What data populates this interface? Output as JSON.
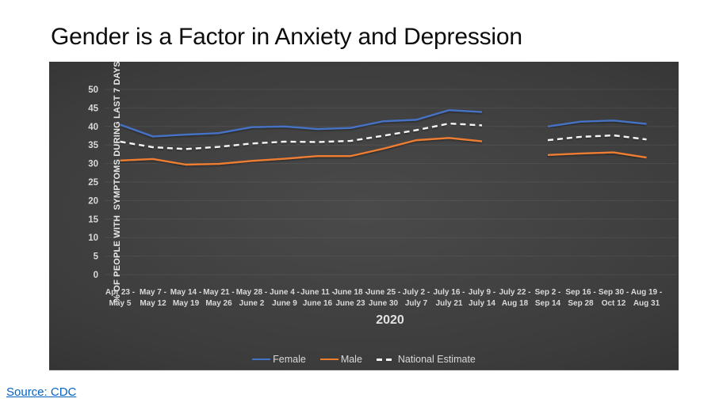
{
  "slide": {
    "title": "Gender is a Factor in Anxiety and Depression",
    "source_label": "Source: CDC"
  },
  "chart_data": {
    "type": "line",
    "title": "Gender is a Factor in Anxiety and Depression",
    "xlabel": "2020",
    "ylabel": "% OF PEOPLE WITH  SYMPTOMS DURING LAST 7 DAYS",
    "ylim": [
      0,
      50
    ],
    "ytick_step": 5,
    "grid": true,
    "legend_position": "bottom",
    "note": "Category 'July 22 - Aug 18' has no data (gap in all series)",
    "categories": [
      [
        "Apr 23 -",
        "May 5"
      ],
      [
        "May 7 -",
        "May 12"
      ],
      [
        "May 14 -",
        "May 19"
      ],
      [
        "May 21 -",
        "May 26"
      ],
      [
        "May 28 -",
        "June 2"
      ],
      [
        "June 4 -",
        "June 9"
      ],
      [
        "June 11 -",
        "June 16"
      ],
      [
        "June 18 -",
        "June 23"
      ],
      [
        "June 25 -",
        "June 30"
      ],
      [
        "July 2 -",
        "July 7"
      ],
      [
        "July 16 -",
        "July 21"
      ],
      [
        "July 9 -",
        "July 14"
      ],
      [
        "July 22 -",
        "Aug 18"
      ],
      [
        "Sep 2 -",
        "Sep 14"
      ],
      [
        "Sep 16 -",
        "Sep 28"
      ],
      [
        "Sep 30 -",
        "Oct 12"
      ],
      [
        "Aug 19 -",
        "Aug 31"
      ]
    ],
    "series": [
      {
        "name": "Female",
        "color": "#4472C4",
        "dashed": false,
        "values": [
          40.5,
          37.3,
          37.8,
          38.2,
          39.8,
          40.0,
          39.3,
          39.6,
          41.4,
          41.8,
          44.4,
          43.9,
          null,
          40.0,
          41.3,
          41.6,
          40.7
        ]
      },
      {
        "name": "Male",
        "color": "#ED7D31",
        "dashed": false,
        "values": [
          30.8,
          31.2,
          29.7,
          29.9,
          30.7,
          31.3,
          32.0,
          32.0,
          34.0,
          36.3,
          36.9,
          36.0,
          null,
          32.3,
          32.7,
          33.0,
          31.6
        ]
      },
      {
        "name": "National Estimate",
        "color": "#F5F5F5",
        "dashed": true,
        "values": [
          35.9,
          34.4,
          33.9,
          34.5,
          35.4,
          35.9,
          35.8,
          36.1,
          37.5,
          39.0,
          40.8,
          40.3,
          null,
          36.3,
          37.2,
          37.6,
          36.5
        ]
      }
    ],
    "colors": {
      "axis_text": "#d9d9d9",
      "grid_line": "rgba(255,255,255,0.07)",
      "plot_bg_center": "#4a4a4a",
      "plot_bg_edge": "#1e1e1e"
    }
  }
}
